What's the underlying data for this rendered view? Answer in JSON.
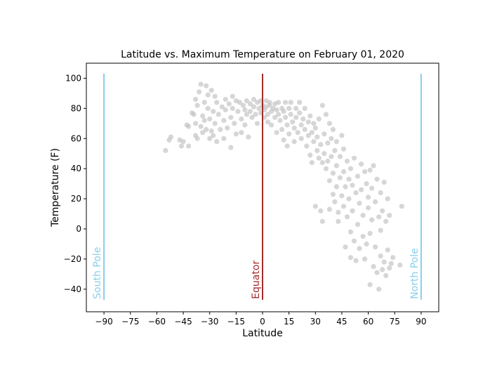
{
  "chart_data": {
    "type": "scatter",
    "title": "Latitude vs. Maximum Temperature on February 01, 2020",
    "xlabel": "Latitude",
    "ylabel": "Temperature (F)",
    "xlim": [
      -100,
      100
    ],
    "ylim": [
      -55,
      110
    ],
    "x_ticks": [
      -90,
      -75,
      -60,
      -45,
      -30,
      -15,
      0,
      15,
      30,
      45,
      60,
      75,
      90
    ],
    "y_ticks": [
      -40,
      -20,
      0,
      20,
      40,
      60,
      80,
      100
    ],
    "grid": false,
    "point_color": "#c0c0c0",
    "reference_lines": [
      {
        "label": "South Pole",
        "x": -90,
        "y_range": [
          -47,
          103
        ],
        "color": "#87ceeb"
      },
      {
        "label": "Equator",
        "x": 0,
        "y_range": [
          -47,
          103
        ],
        "color": "#a52a2a"
      },
      {
        "label": "North Pole",
        "x": 90,
        "y_range": [
          -47,
          103
        ],
        "color": "#87ceeb"
      }
    ],
    "points": [
      [
        -55,
        52
      ],
      [
        -53,
        59
      ],
      [
        -52,
        61
      ],
      [
        -47,
        59
      ],
      [
        -46,
        55
      ],
      [
        -45,
        58
      ],
      [
        -43,
        69
      ],
      [
        -42,
        68
      ],
      [
        -42,
        55
      ],
      [
        -40,
        77
      ],
      [
        -39,
        76
      ],
      [
        -38,
        70
      ],
      [
        -38,
        86
      ],
      [
        -38,
        62
      ],
      [
        -37,
        82
      ],
      [
        -37,
        60
      ],
      [
        -36,
        91
      ],
      [
        -35,
        96
      ],
      [
        -35,
        68
      ],
      [
        -34,
        75
      ],
      [
        -34,
        64
      ],
      [
        -33,
        84
      ],
      [
        -33,
        72
      ],
      [
        -32,
        95
      ],
      [
        -32,
        66
      ],
      [
        -31,
        89
      ],
      [
        -31,
        80
      ],
      [
        -30,
        60
      ],
      [
        -30,
        73
      ],
      [
        -29,
        92
      ],
      [
        -29,
        65
      ],
      [
        -28,
        78
      ],
      [
        -28,
        62
      ],
      [
        -27,
        88
      ],
      [
        -27,
        70
      ],
      [
        -26,
        84
      ],
      [
        -26,
        58
      ],
      [
        -25,
        76
      ],
      [
        -24,
        66
      ],
      [
        -23,
        81
      ],
      [
        -22,
        72
      ],
      [
        -22,
        60
      ],
      [
        -21,
        86
      ],
      [
        -21,
        79
      ],
      [
        -20,
        67
      ],
      [
        -19,
        83
      ],
      [
        -18,
        74
      ],
      [
        -18,
        54
      ],
      [
        -17,
        88
      ],
      [
        -17,
        80
      ],
      [
        -16,
        70
      ],
      [
        -15,
        85
      ],
      [
        -15,
        63
      ],
      [
        -14,
        78
      ],
      [
        -13,
        84
      ],
      [
        -12,
        73
      ],
      [
        -12,
        64
      ],
      [
        -11,
        82
      ],
      [
        -10,
        79
      ],
      [
        -10,
        69
      ],
      [
        -9,
        85
      ],
      [
        -9,
        76
      ],
      [
        -8,
        61
      ],
      [
        -7,
        83
      ],
      [
        -7,
        78
      ],
      [
        -6,
        74
      ],
      [
        -5,
        86
      ],
      [
        -5,
        81
      ],
      [
        -4,
        76
      ],
      [
        -3,
        84
      ],
      [
        -3,
        70
      ],
      [
        -2,
        80
      ],
      [
        -1,
        77
      ],
      [
        -1,
        85
      ],
      [
        0,
        82
      ],
      [
        1,
        79
      ],
      [
        1,
        74
      ],
      [
        2,
        85
      ],
      [
        2,
        81
      ],
      [
        3,
        76
      ],
      [
        3,
        71
      ],
      [
        4,
        82
      ],
      [
        4,
        84
      ],
      [
        5,
        78
      ],
      [
        5,
        69
      ],
      [
        6,
        80
      ],
      [
        7,
        83
      ],
      [
        7,
        74
      ],
      [
        8,
        79
      ],
      [
        8,
        64
      ],
      [
        9,
        84
      ],
      [
        9,
        76
      ],
      [
        10,
        72
      ],
      [
        11,
        80
      ],
      [
        11,
        66
      ],
      [
        12,
        78
      ],
      [
        12,
        59
      ],
      [
        13,
        74
      ],
      [
        13,
        84
      ],
      [
        14,
        69
      ],
      [
        14,
        55
      ],
      [
        15,
        80
      ],
      [
        15,
        63
      ],
      [
        16,
        76
      ],
      [
        16,
        84
      ],
      [
        17,
        71
      ],
      [
        18,
        67
      ],
      [
        18,
        58
      ],
      [
        19,
        80
      ],
      [
        19,
        74
      ],
      [
        20,
        64
      ],
      [
        21,
        77
      ],
      [
        21,
        84
      ],
      [
        22,
        69
      ],
      [
        22,
        60
      ],
      [
        23,
        73
      ],
      [
        24,
        66
      ],
      [
        24,
        80
      ],
      [
        25,
        55
      ],
      [
        26,
        71
      ],
      [
        26,
        62
      ],
      [
        27,
        75
      ],
      [
        27,
        49
      ],
      [
        28,
        64
      ],
      [
        28,
        44
      ],
      [
        29,
        70
      ],
      [
        29,
        58
      ],
      [
        30,
        15
      ],
      [
        30,
        67
      ],
      [
        31,
        52
      ],
      [
        31,
        61
      ],
      [
        32,
        47
      ],
      [
        32,
        73
      ],
      [
        33,
        12
      ],
      [
        33,
        56
      ],
      [
        34,
        82
      ],
      [
        34,
        44
      ],
      [
        34,
        5
      ],
      [
        35,
        63
      ],
      [
        35,
        50
      ],
      [
        36,
        76
      ],
      [
        36,
        40
      ],
      [
        37,
        57
      ],
      [
        37,
        45
      ],
      [
        38,
        70
      ],
      [
        38,
        32
      ],
      [
        38,
        13
      ],
      [
        39,
        60
      ],
      [
        39,
        48
      ],
      [
        40,
        23
      ],
      [
        40,
        66
      ],
      [
        40,
        37
      ],
      [
        41,
        52
      ],
      [
        41,
        18
      ],
      [
        42,
        58
      ],
      [
        42,
        42
      ],
      [
        42,
        28
      ],
      [
        43,
        5
      ],
      [
        43,
        11
      ],
      [
        44,
        48
      ],
      [
        44,
        34
      ],
      [
        45,
        62
      ],
      [
        45,
        22
      ],
      [
        46,
        53
      ],
      [
        46,
        15
      ],
      [
        46,
        38
      ],
      [
        47,
        -12
      ],
      [
        47,
        28
      ],
      [
        48,
        45
      ],
      [
        48,
        8
      ],
      [
        49,
        33
      ],
      [
        49,
        20
      ],
      [
        50,
        -19
      ],
      [
        50,
        40
      ],
      [
        50,
        -2
      ],
      [
        51,
        29
      ],
      [
        51,
        12
      ],
      [
        52,
        47
      ],
      [
        52,
        -8
      ],
      [
        53,
        24
      ],
      [
        53,
        -21
      ],
      [
        54,
        35
      ],
      [
        54,
        3
      ],
      [
        55,
        17
      ],
      [
        55,
        -13
      ],
      [
        56,
        43
      ],
      [
        56,
        26
      ],
      [
        57,
        -5
      ],
      [
        57,
        9
      ],
      [
        58,
        38
      ],
      [
        58,
        -20
      ],
      [
        59,
        30
      ],
      [
        59,
        -10
      ],
      [
        60,
        21
      ],
      [
        60,
        14
      ],
      [
        61,
        39
      ],
      [
        61,
        -3
      ],
      [
        61,
        -37
      ],
      [
        62,
        27
      ],
      [
        62,
        6
      ],
      [
        63,
        -25
      ],
      [
        63,
        42
      ],
      [
        64,
        18
      ],
      [
        64,
        -12
      ],
      [
        65,
        33
      ],
      [
        65,
        -29
      ],
      [
        66,
        8
      ],
      [
        66,
        -40
      ],
      [
        67,
        24
      ],
      [
        67,
        -18
      ],
      [
        67,
        -1
      ],
      [
        68,
        12
      ],
      [
        68,
        -27
      ],
      [
        69,
        31
      ],
      [
        69,
        -22
      ],
      [
        70,
        5
      ],
      [
        70,
        -31
      ],
      [
        71,
        20
      ],
      [
        71,
        -14
      ],
      [
        72,
        -26
      ],
      [
        72,
        9
      ],
      [
        73,
        -23
      ],
      [
        74,
        -19
      ],
      [
        78,
        -24
      ],
      [
        79,
        15
      ]
    ]
  }
}
